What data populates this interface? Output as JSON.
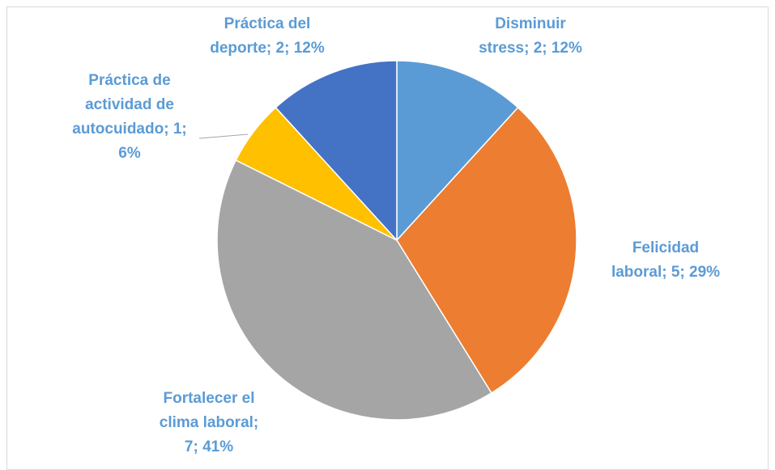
{
  "chart_data": {
    "type": "pie",
    "values": [
      2,
      5,
      7,
      1,
      2
    ],
    "value_labels": [
      "Disminuir stress; 2; 12%",
      "Felicidad laboral; 5; 29%",
      "Fortalecer el clima laboral; 7; 41%",
      "Práctica de actividad de autocuidado; 1; 6%",
      "Práctica del deporte; 2; 12%"
    ],
    "colors": [
      "#5b9bd5",
      "#ed7d31",
      "#a5a5a5",
      "#ffc000",
      "#4472c4"
    ],
    "label_color": "#5b9bd5"
  }
}
